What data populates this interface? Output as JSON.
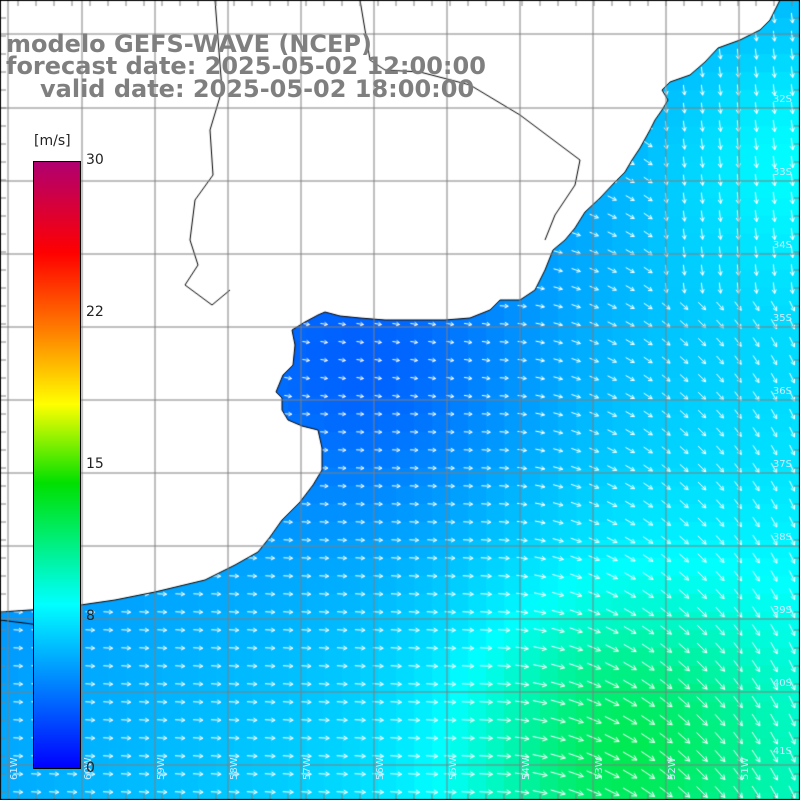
{
  "title": {
    "line1": "modelo GEFS-WAVE (NCEP)",
    "line2": "forecast date: 2025-05-02 12:00:00",
    "line3": "valid date: 2025-05-02 18:00:00"
  },
  "colorbar": {
    "units": "[m/s]",
    "ticks": [
      "30",
      "22",
      "15",
      "8",
      "0"
    ],
    "tick_values": [
      30,
      22,
      15,
      8,
      0
    ],
    "range": [
      0,
      30
    ],
    "colors": [
      "#0000ff",
      "#00ffff",
      "#00e000",
      "#ffff00",
      "#ff8000",
      "#ff0000",
      "#b00070"
    ]
  },
  "lat_labels": [
    "32S",
    "33S",
    "34S",
    "35S",
    "36S",
    "37S",
    "38S",
    "39S",
    "40S",
    "41S"
  ],
  "lon_labels": [
    "61W",
    "60W",
    "59W",
    "58W",
    "57W",
    "56W",
    "55W",
    "54W",
    "53W",
    "52W",
    "51W"
  ],
  "colors": {
    "land": "#ffffff",
    "grid": "#7f7f7f",
    "coast": "#000000",
    "title": "#7f7f7f",
    "arrows": "#ffffff"
  }
}
